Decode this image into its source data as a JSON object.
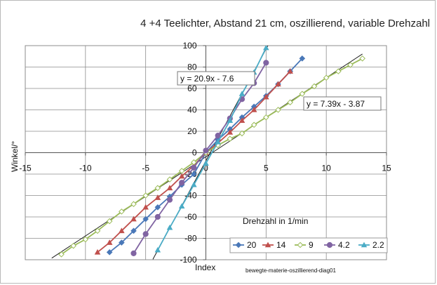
{
  "chart_data": {
    "type": "scatter",
    "title": "4 +4 Teelichter, Abstand 21 cm, oszillierend, variable Drehzahl",
    "xlabel": "Index",
    "ylabel": "Winkel/°",
    "footnote": "bewegte-materie-oszillierend-diag01",
    "xlim": [
      -15,
      15
    ],
    "ylim": [
      -100,
      100
    ],
    "xticks": [
      -15,
      -10,
      -5,
      0,
      5,
      10,
      15
    ],
    "yticks": [
      -100,
      -80,
      -60,
      -40,
      -20,
      0,
      20,
      40,
      60,
      80,
      100
    ],
    "grid": true,
    "legend_title": "Drehzahl in 1/min",
    "legend_position": "bottom-right",
    "series": [
      {
        "name": "20",
        "color": "#4a78b8",
        "marker": "diamond",
        "x": [
          -8,
          -7,
          -6,
          -5,
          -4,
          -3,
          -2,
          -1,
          0,
          1,
          2,
          3,
          4,
          5,
          6,
          7,
          8
        ],
        "y": [
          -93,
          -84,
          -73,
          -62,
          -51,
          -41,
          -30,
          -20,
          0,
          12,
          22,
          33,
          43,
          53,
          64,
          76,
          88
        ]
      },
      {
        "name": "14",
        "color": "#c0504d",
        "marker": "triangle",
        "x": [
          -9,
          -8,
          -7,
          -6,
          -5,
          -4,
          -3,
          -2,
          -1,
          0,
          1,
          2,
          3,
          4,
          5,
          6,
          7
        ],
        "y": [
          -93,
          -84,
          -73,
          -62,
          -51,
          -42,
          -33,
          -22,
          -12,
          0,
          9,
          19,
          30,
          40,
          52,
          64,
          76
        ]
      },
      {
        "name": "9",
        "color": "#9bbb59",
        "marker": "diamond-open",
        "x": [
          -12,
          -11,
          -10,
          -9,
          -8,
          -7,
          -6,
          -5,
          -4,
          -3,
          -2,
          -1,
          0,
          1,
          2,
          3,
          4,
          5,
          6,
          7,
          8,
          9,
          10,
          11,
          12,
          13
        ],
        "y": [
          -95,
          -87,
          -81,
          -73,
          -64,
          -55,
          -48,
          -40,
          -33,
          -25,
          -17,
          -9,
          0,
          7,
          13,
          18,
          26,
          33,
          40,
          47,
          55,
          62,
          70,
          76,
          82,
          88
        ]
      },
      {
        "name": "4.2",
        "color": "#8064a2",
        "marker": "circle",
        "x": [
          -6,
          -5,
          -4,
          -3,
          -2,
          -1,
          0,
          1,
          2,
          3,
          4,
          5
        ],
        "y": [
          -94,
          -76,
          -60,
          -44,
          -28,
          -14,
          2,
          16,
          32,
          50,
          65,
          84
        ]
      },
      {
        "name": "2.2",
        "color": "#4bacc6",
        "marker": "triangle",
        "x": [
          -4,
          -3,
          -2,
          -1,
          0,
          1,
          2,
          3,
          4,
          5
        ],
        "y": [
          -91,
          -70,
          -50,
          -30,
          -10,
          10,
          30,
          55,
          75,
          98
        ]
      }
    ],
    "trendlines": [
      {
        "label": "y = 20.9x - 7.6",
        "slope": 20.9,
        "intercept": -7.6
      },
      {
        "label": "y = 7.39x - 3.87",
        "slope": 7.39,
        "intercept": -3.87
      }
    ]
  }
}
